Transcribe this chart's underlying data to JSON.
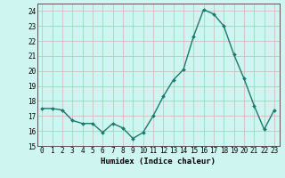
{
  "x": [
    0,
    1,
    2,
    3,
    4,
    5,
    6,
    7,
    8,
    9,
    10,
    11,
    12,
    13,
    14,
    15,
    16,
    17,
    18,
    19,
    20,
    21,
    22,
    23
  ],
  "y": [
    17.5,
    17.5,
    17.4,
    16.7,
    16.5,
    16.5,
    15.9,
    16.5,
    16.2,
    15.5,
    15.9,
    17.0,
    18.3,
    19.4,
    20.1,
    22.3,
    24.1,
    23.8,
    23.0,
    21.1,
    19.5,
    17.7,
    16.1,
    17.4
  ],
  "line_color": "#1a7a6a",
  "marker": "D",
  "marker_size": 2.0,
  "bg_color": "#cff5f0",
  "grid_color": "#c8b8b8",
  "xlabel": "Humidex (Indice chaleur)",
  "ylim": [
    15,
    24.5
  ],
  "xlim": [
    -0.5,
    23.5
  ],
  "yticks": [
    15,
    16,
    17,
    18,
    19,
    20,
    21,
    22,
    23,
    24
  ],
  "xticks": [
    0,
    1,
    2,
    3,
    4,
    5,
    6,
    7,
    8,
    9,
    10,
    11,
    12,
    13,
    14,
    15,
    16,
    17,
    18,
    19,
    20,
    21,
    22,
    23
  ],
  "xtick_labels": [
    "0",
    "1",
    "2",
    "3",
    "4",
    "5",
    "6",
    "7",
    "8",
    "9",
    "10",
    "11",
    "12",
    "13",
    "14",
    "15",
    "16",
    "17",
    "18",
    "19",
    "20",
    "21",
    "22",
    "23"
  ],
  "font_family": "monospace",
  "tick_fontsize": 5.5,
  "xlabel_fontsize": 6.5
}
